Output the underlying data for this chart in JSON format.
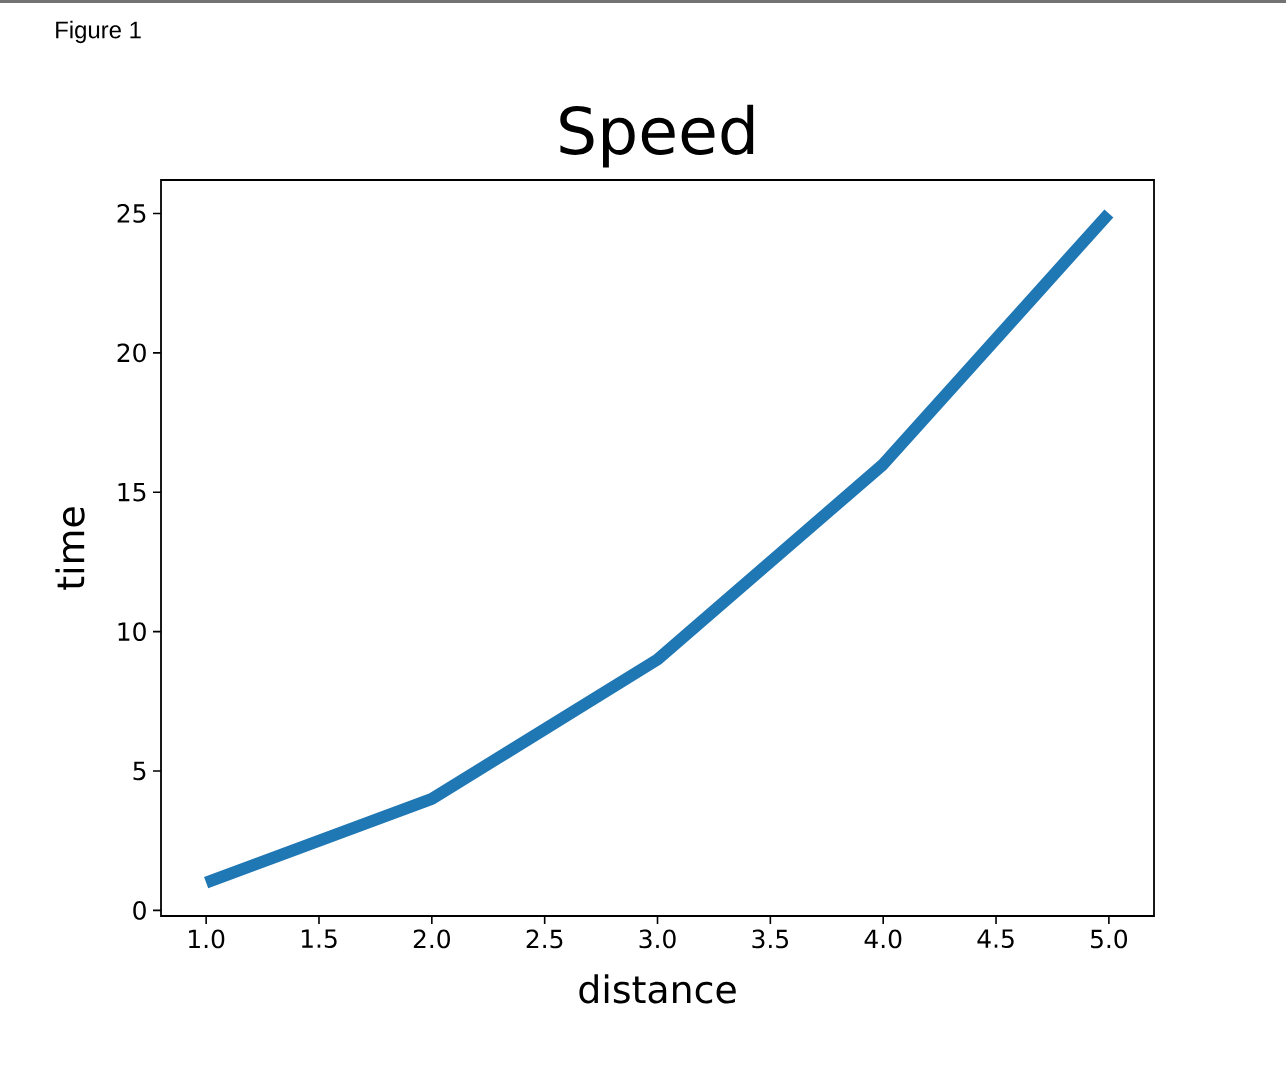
{
  "chart_data": {
    "type": "line",
    "title": "Speed",
    "xlabel": "distance",
    "ylabel": "time",
    "x": [
      1,
      2,
      3,
      4,
      5
    ],
    "series": [
      {
        "color": "#1f77b4",
        "values": [
          1,
          4,
          9,
          16,
          25
        ]
      }
    ],
    "xlim": [
      0.8,
      5.2
    ],
    "ylim": [
      -0.2,
      26.2
    ],
    "xticks": [
      {
        "value": 1,
        "label": "1.0"
      },
      1.5,
      {
        "value": 2,
        "label": "2.0"
      },
      2.5,
      {
        "value": 3,
        "label": "3.0"
      },
      3.5,
      {
        "value": 4,
        "label": "4.0"
      },
      4.5,
      {
        "value": 5,
        "label": "5.0"
      }
    ],
    "yticks": [
      0,
      5,
      10,
      15,
      20,
      25
    ],
    "marker": "none",
    "line_style": "solid",
    "annotations": [
      "Figure 1"
    ]
  }
}
